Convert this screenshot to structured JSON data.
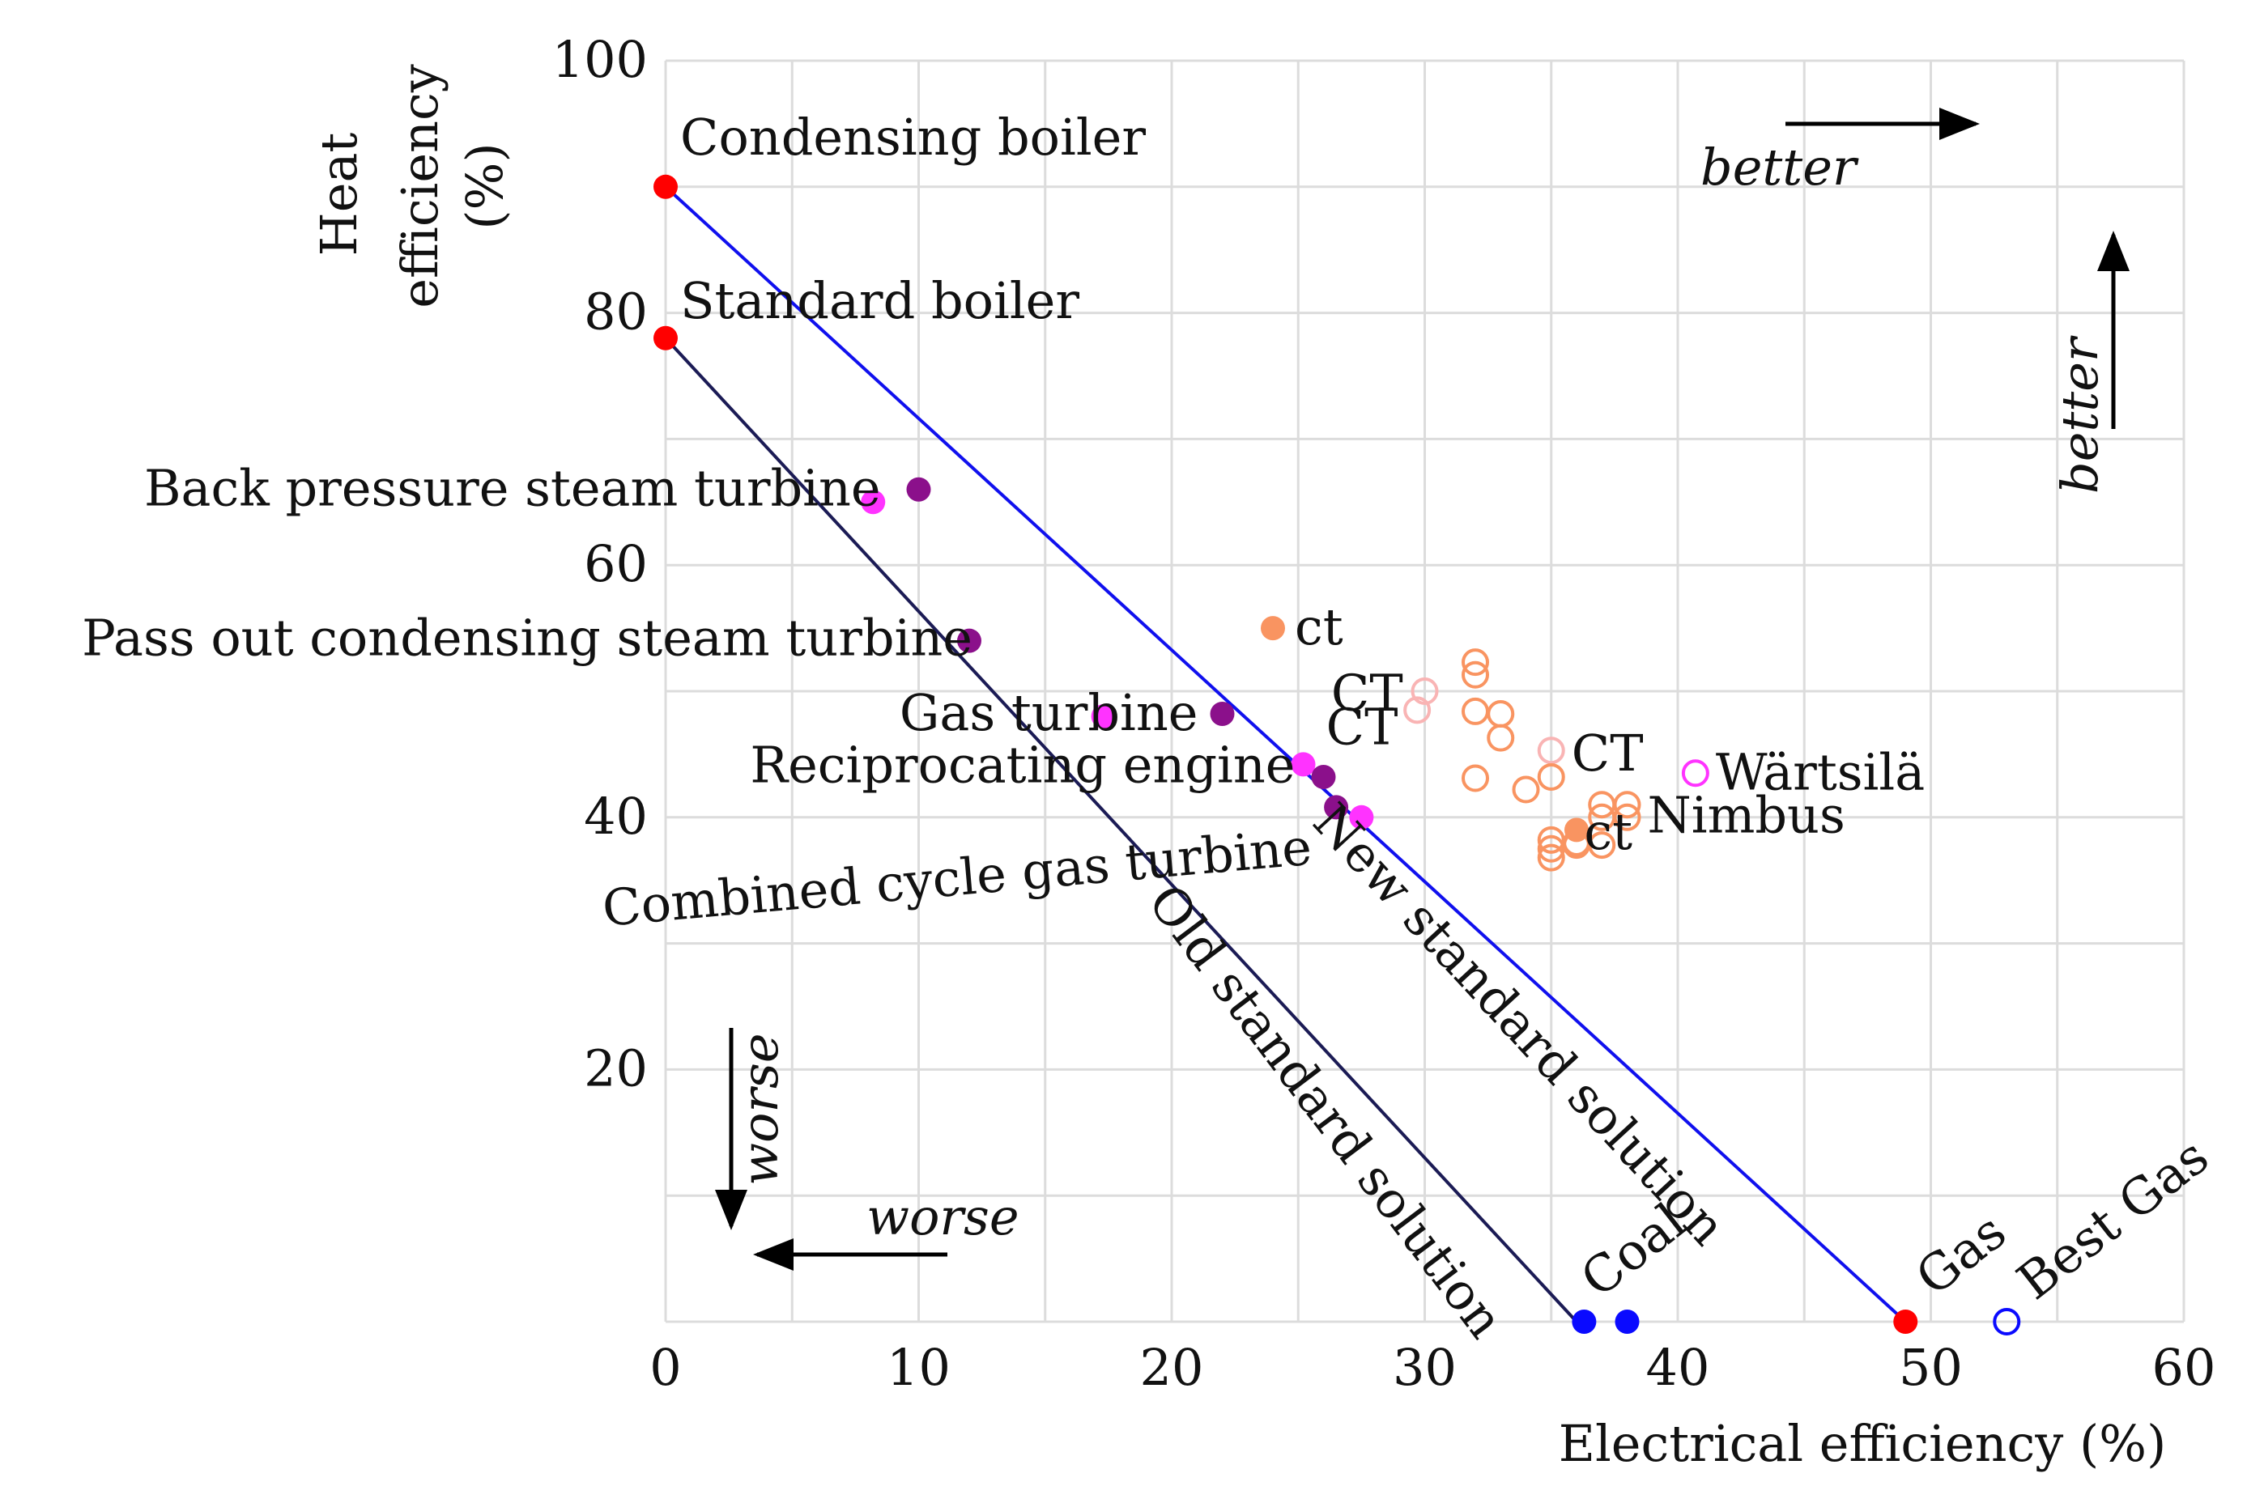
{
  "chart_data": {
    "type": "scatter",
    "title": "",
    "xlabel": "Electrical efficiency (%)",
    "ylabel_lines": [
      "Heat",
      "efficiency",
      "(%)"
    ],
    "xlim": [
      0,
      60
    ],
    "ylim": [
      0,
      100
    ],
    "x_ticks": [
      0,
      10,
      20,
      30,
      40,
      50,
      60
    ],
    "y_ticks": [
      20,
      40,
      60,
      80,
      100
    ],
    "grid_step_x": 5,
    "grid_step_y": 10,
    "grid": true,
    "lines": [
      {
        "name": "New standard solution",
        "color": "#1010ee",
        "points": [
          [
            0,
            90
          ],
          [
            49,
            0
          ]
        ]
      },
      {
        "name": "Old standard solution",
        "color": "#1b1b55",
        "points": [
          [
            0,
            78
          ],
          [
            36,
            0
          ]
        ]
      }
    ],
    "points": [
      {
        "label": "Condensing boiler",
        "x": 0,
        "y": 90,
        "color": "#ff0000",
        "filled": true
      },
      {
        "label": "Standard boiler",
        "x": 0,
        "y": 78,
        "color": "#ff0000",
        "filled": true
      },
      {
        "label": "Back pressure steam turbine",
        "x": 10,
        "y": 66,
        "color": "#8b108b",
        "filled": true
      },
      {
        "label": "",
        "x": 8.2,
        "y": 65,
        "color": "#ff33ff",
        "filled": true
      },
      {
        "label": "Pass out condensing steam turbine",
        "x": 12,
        "y": 54,
        "color": "#8b108b",
        "filled": true
      },
      {
        "label": "Gas turbine",
        "x": 22,
        "y": 48.2,
        "color": "#8b108b",
        "filled": true
      },
      {
        "label": "",
        "x": 17.3,
        "y": 48,
        "color": "#ff33ff",
        "filled": true
      },
      {
        "label": "Reciprocating engine",
        "x": 25.2,
        "y": 44.2,
        "color": "#ff33ff",
        "filled": true
      },
      {
        "label": "",
        "x": 26,
        "y": 43.2,
        "color": "#8b108b",
        "filled": true
      },
      {
        "label": "",
        "x": 26.5,
        "y": 40.8,
        "color": "#8b108b",
        "filled": true
      },
      {
        "label": "Combined cycle gas turbine",
        "x": 27.5,
        "y": 40,
        "color": "#ff33ff",
        "filled": true
      },
      {
        "label": "ct",
        "x": 24,
        "y": 55,
        "color": "#f99461",
        "filled": true
      },
      {
        "label": "",
        "x": 36,
        "y": 39,
        "color": "#f99461",
        "filled": true
      },
      {
        "label": "Wärtsilä",
        "x": 40.7,
        "y": 43.5,
        "color": "#ff33ff",
        "filled": false
      },
      {
        "label": "Coal",
        "x": 36.3,
        "y": 0,
        "color": "#0a0aff",
        "filled": true
      },
      {
        "label": "",
        "x": 38,
        "y": 0,
        "color": "#0a0aff",
        "filled": true
      },
      {
        "label": "Gas",
        "x": 49,
        "y": 0,
        "color": "#ff0000",
        "filled": true
      },
      {
        "label": "Best Gas",
        "x": 53,
        "y": 0,
        "color": "#0a0aff",
        "filled": false
      }
    ],
    "open_orange_points": [
      [
        32,
        52.3
      ],
      [
        32,
        51.3
      ],
      [
        32,
        48.4
      ],
      [
        33,
        48.2
      ],
      [
        33,
        46.3
      ],
      [
        32,
        43.1
      ],
      [
        34,
        42.2
      ],
      [
        35,
        43.2
      ],
      [
        35,
        38.2
      ],
      [
        35,
        37.5
      ],
      [
        35,
        36.8
      ],
      [
        36,
        38
      ],
      [
        36,
        37.8
      ],
      [
        37,
        41
      ],
      [
        37,
        40
      ],
      [
        38,
        41
      ],
      [
        38,
        40
      ],
      [
        37,
        37.8
      ]
    ],
    "open_orange_color": "#f99461",
    "open_pale_points": [
      [
        30,
        50
      ],
      [
        29.7,
        48.5
      ],
      [
        35,
        45.3
      ]
    ],
    "open_pale_color": "#f9b4b4",
    "text_annotations": [
      {
        "text": "CT",
        "x": 26.3,
        "y": 48.5
      },
      {
        "text": "CT",
        "x": 26.1,
        "y": 45.8
      },
      {
        "text": "CT",
        "x": 35.8,
        "y": 43.7
      },
      {
        "text": "ct",
        "x": 36.3,
        "y": 37.5
      },
      {
        "text": "Nimbus",
        "x": 38.8,
        "y": 38.8
      }
    ],
    "direction_annotations": {
      "better_right": "better",
      "better_up": "better",
      "worse_down": "worse",
      "worse_left": "worse"
    }
  }
}
